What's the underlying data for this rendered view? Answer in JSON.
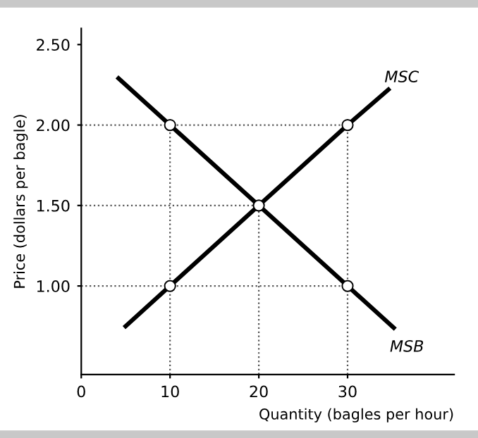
{
  "chart_data": {
    "type": "line",
    "xlabel": "Quantity (bagles per hour)",
    "ylabel": "Price (dollars per bagle)",
    "xlim": [
      0,
      42
    ],
    "ylim": [
      0.45,
      2.6
    ],
    "xticks": [
      0,
      10,
      20,
      30
    ],
    "yticks": [
      {
        "value": 1.0,
        "label": "1.00"
      },
      {
        "value": 1.5,
        "label": "1.50"
      },
      {
        "value": 2.0,
        "label": "2.00"
      },
      {
        "value": 2.5,
        "label": "2.50"
      }
    ],
    "grid": false,
    "ref_lines": [
      {
        "axis": "x",
        "value": 10,
        "color": "#555555",
        "line_style": "dotted"
      },
      {
        "axis": "x",
        "value": 20,
        "color": "#555555",
        "line_style": "dotted"
      },
      {
        "axis": "x",
        "value": 30,
        "color": "#555555",
        "line_style": "dotted"
      },
      {
        "axis": "y",
        "value": 1.0,
        "color": "#555555",
        "line_style": "dotted"
      },
      {
        "axis": "y",
        "value": 1.5,
        "color": "#555555",
        "line_style": "dotted"
      },
      {
        "axis": "y",
        "value": 2.0,
        "color": "#555555",
        "line_style": "dotted"
      }
    ],
    "legend": false,
    "series": [
      {
        "name": "MSC",
        "color": "#000000",
        "x": [
          5,
          10,
          20,
          30,
          34.6
        ],
        "values": [
          0.75,
          1.0,
          1.5,
          2.0,
          2.22
        ]
      },
      {
        "name": "MSB",
        "color": "#000000",
        "x": [
          4.2,
          10,
          20,
          30,
          35.2
        ],
        "values": [
          2.29,
          2.0,
          1.5,
          1.0,
          0.74
        ]
      },
      {
        "type": "scatter",
        "color": "#000000",
        "marker": "circle",
        "x": [
          10,
          20,
          30,
          10,
          30
        ],
        "values": [
          2.0,
          1.5,
          1.0,
          1.0,
          2.0
        ]
      }
    ]
  }
}
